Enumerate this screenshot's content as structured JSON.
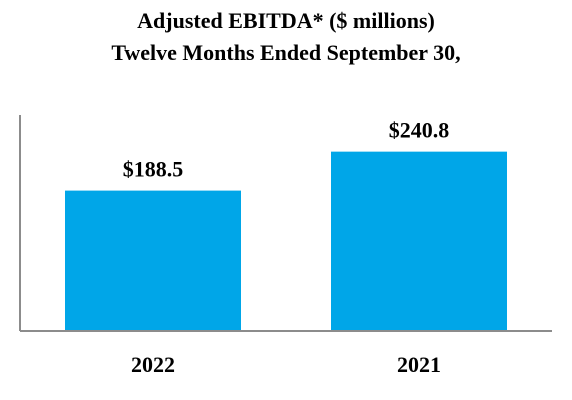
{
  "chart_data": {
    "type": "bar",
    "title": "Adjusted EBITDA* ($ millions)",
    "subtitle": "Twelve Months Ended September 30,",
    "categories": [
      "2022",
      "2021"
    ],
    "values": [
      188.5,
      240.8
    ],
    "value_labels": [
      "$188.5",
      "$240.8"
    ],
    "xlabel": "",
    "ylabel": "",
    "ylim": [
      0,
      290
    ],
    "grid": false,
    "legend": "none",
    "bar_color": "#00A6E8",
    "axis_color": "#8C8C8C"
  }
}
